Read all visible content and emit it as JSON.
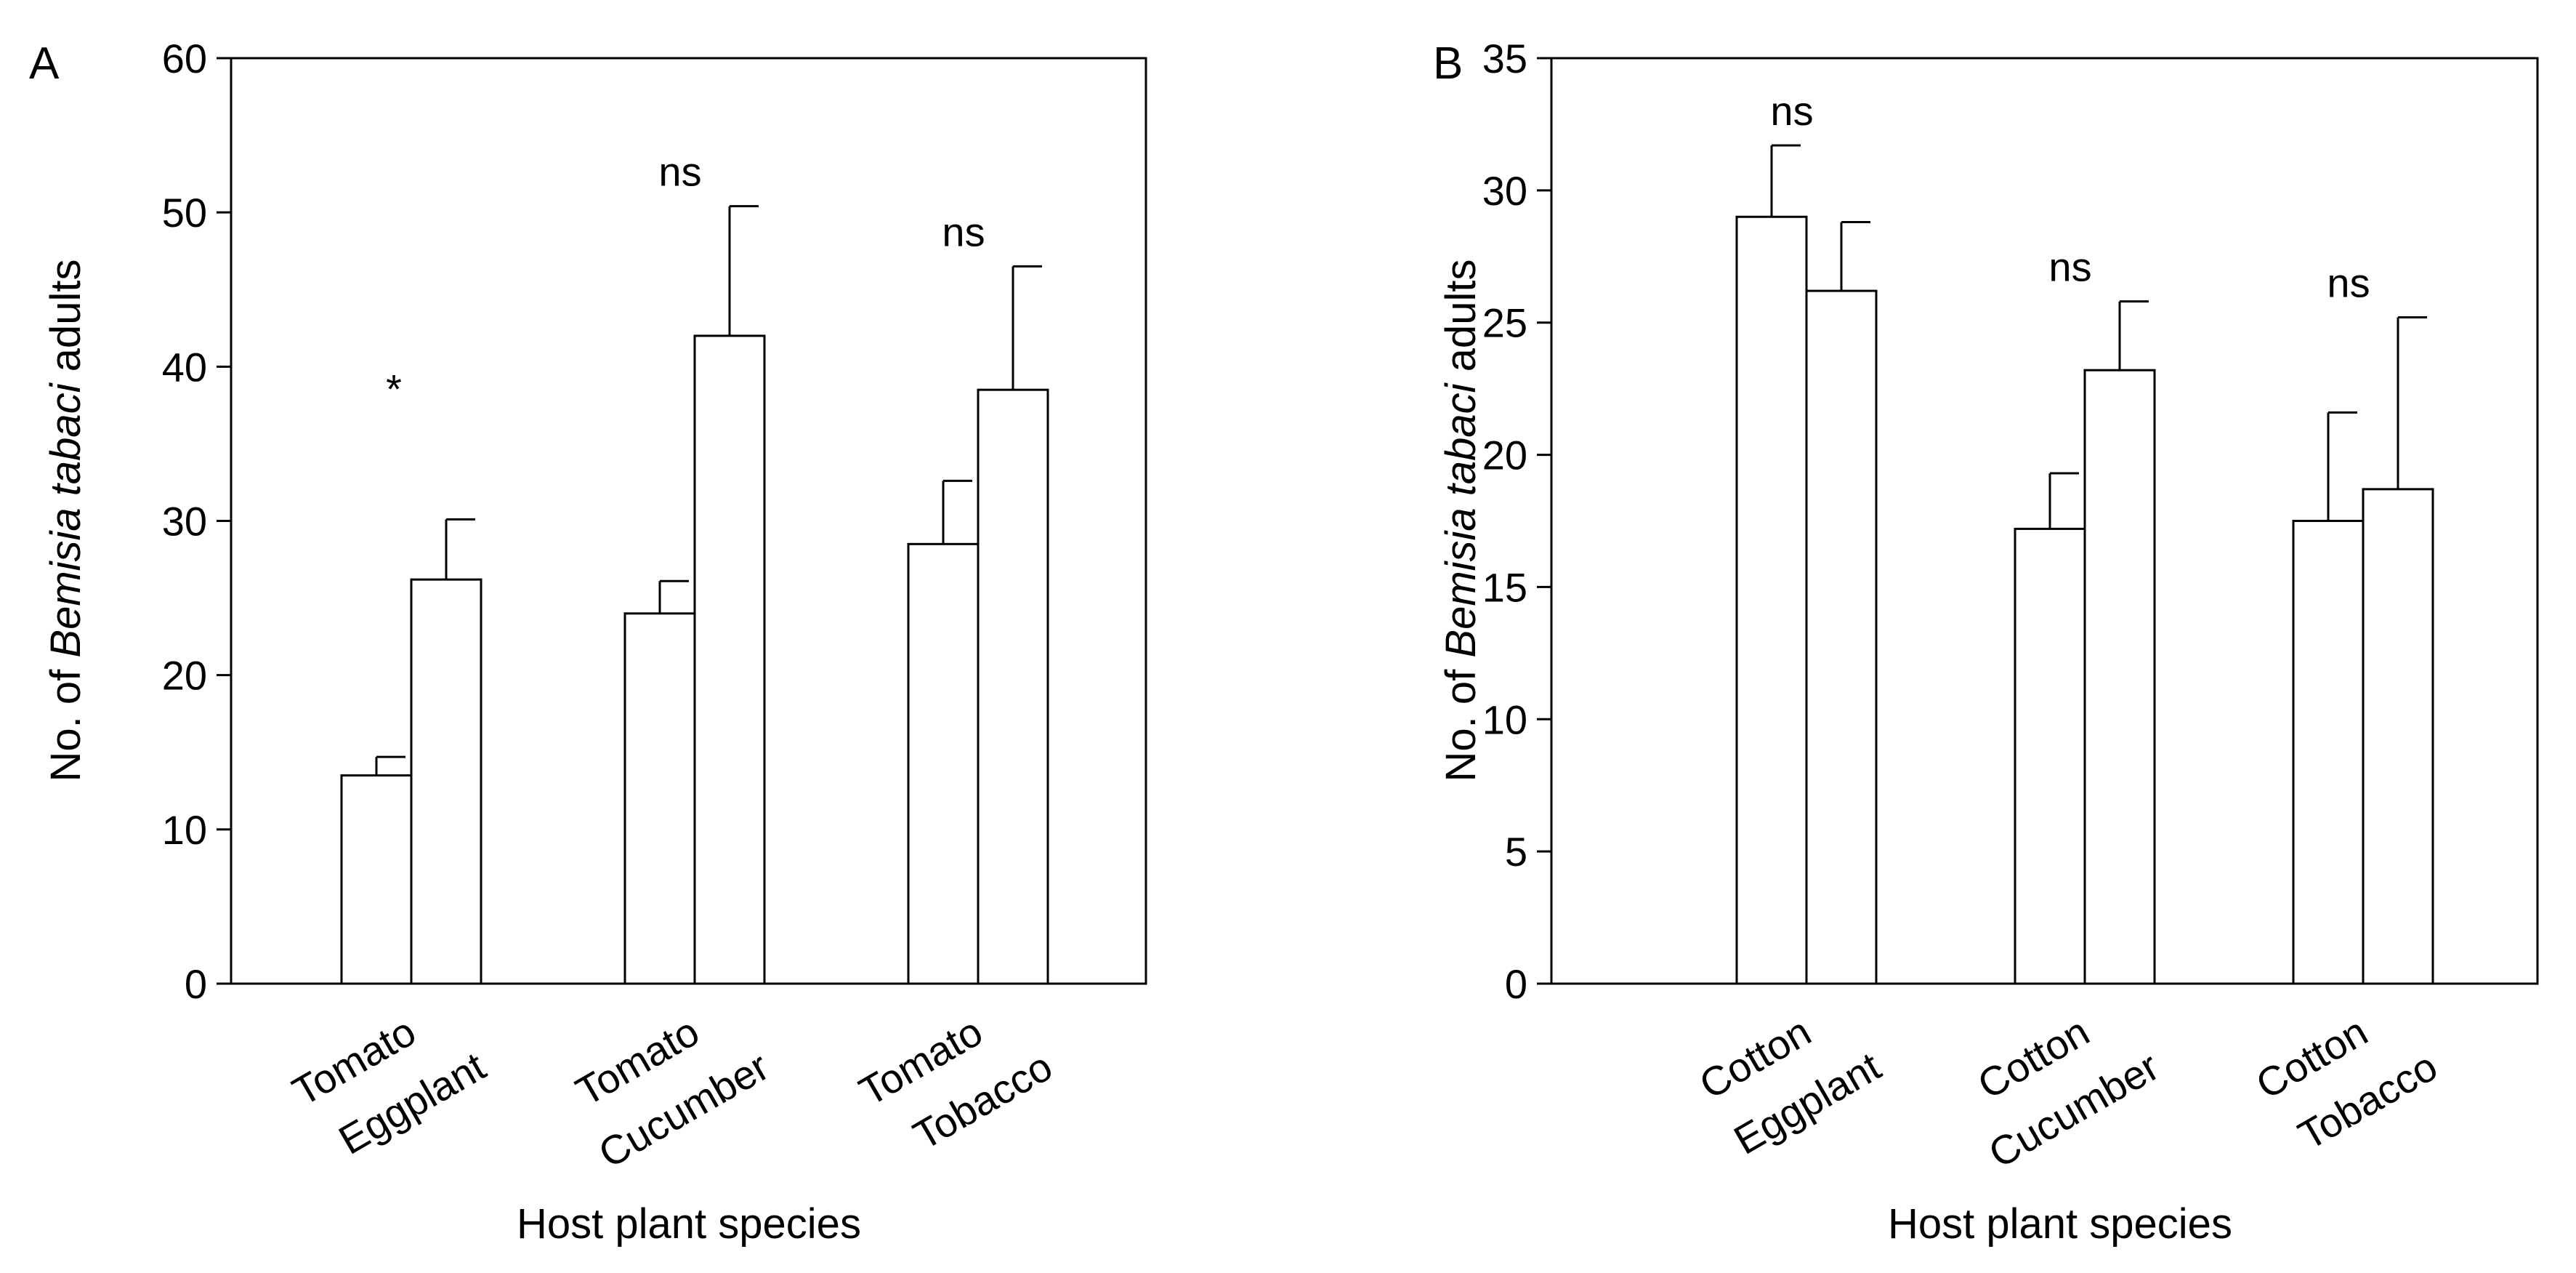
{
  "chart_data": [
    {
      "type": "bar",
      "panel_label": "A",
      "xlabel": "Host plant species",
      "ylabel": {
        "prefix": "No. of ",
        "italic": "Bemisia tabaci",
        "suffix": " adults"
      },
      "ylim": [
        0,
        60
      ],
      "yticks": [
        0,
        10,
        20,
        30,
        40,
        50,
        60
      ],
      "groups": [
        {
          "labels": [
            "Tomato",
            "Eggplant"
          ],
          "values": [
            13.5,
            26.2
          ],
          "errors": [
            1.2,
            3.9
          ],
          "significance": "*"
        },
        {
          "labels": [
            "Tomato",
            "Cucumber"
          ],
          "values": [
            24.0,
            42.0
          ],
          "errors": [
            2.1,
            8.4
          ],
          "significance": "ns"
        },
        {
          "labels": [
            "Tomato",
            "Tobacco"
          ],
          "values": [
            28.5,
            38.5
          ],
          "errors": [
            4.1,
            8.0
          ],
          "significance": "ns"
        }
      ]
    },
    {
      "type": "bar",
      "panel_label": "B",
      "xlabel": "Host plant species",
      "ylabel": {
        "prefix": "No. of ",
        "italic": "Bemisia tabaci",
        "suffix": " adults"
      },
      "ylim": [
        0,
        35
      ],
      "yticks": [
        0,
        5,
        10,
        15,
        20,
        25,
        30,
        35
      ],
      "groups": [
        {
          "labels": [
            "Cotton",
            "Eggplant"
          ],
          "values": [
            29.0,
            26.2
          ],
          "errors": [
            2.7,
            2.6
          ],
          "significance": "ns"
        },
        {
          "labels": [
            "Cotton",
            "Cucumber"
          ],
          "values": [
            17.2,
            23.2
          ],
          "errors": [
            2.1,
            2.6
          ],
          "significance": "ns"
        },
        {
          "labels": [
            "Cotton",
            "Tobacco"
          ],
          "values": [
            17.5,
            18.7
          ],
          "errors": [
            4.1,
            6.5
          ],
          "significance": "ns"
        }
      ]
    }
  ]
}
